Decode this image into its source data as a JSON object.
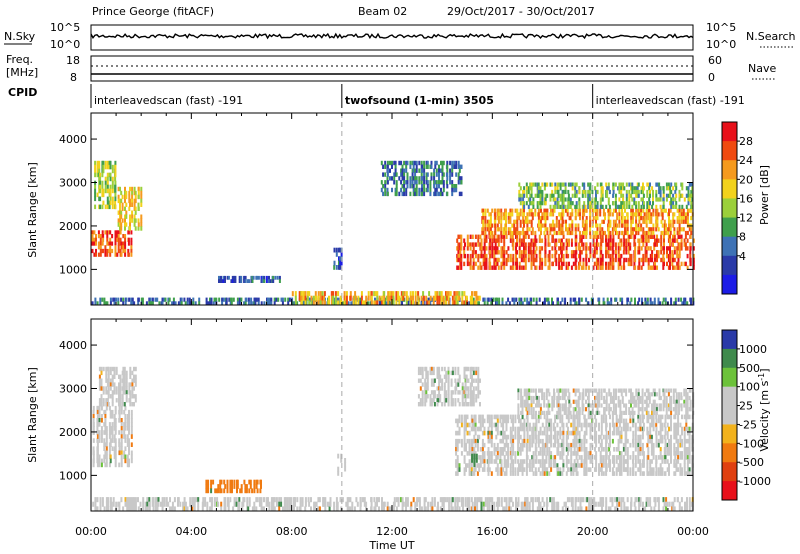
{
  "header": {
    "site": "Prince George (fitACF)",
    "beam": "Beam 02",
    "date_range": "29/Oct/2017 - 30/Oct/2017"
  },
  "noise_panel": {
    "left_label": "N.Sky",
    "right_label": "N.Search",
    "left_ticks": [
      "10^5",
      "10^0"
    ],
    "right_ticks": [
      "10^5",
      "10^0"
    ]
  },
  "freq_panel": {
    "left_label_1": "Freq.",
    "left_label_2": "[MHz]",
    "right_label": "Nave",
    "left_ticks": [
      "18",
      "8"
    ],
    "right_ticks": [
      "60",
      "0"
    ]
  },
  "cpid": {
    "label": "CPID",
    "segments": [
      {
        "text": "interleavedscan (fast) -191",
        "start": 0,
        "end": 10
      },
      {
        "text": "twofsound (1-min) 3505",
        "start": 10,
        "end": 20
      },
      {
        "text": "interleavedscan (fast) -191",
        "start": 20,
        "end": 24
      }
    ]
  },
  "power_colorbar": {
    "label": "Power [dB]",
    "ticks": [
      "28",
      "24",
      "20",
      "16",
      "12",
      "8",
      "4"
    ],
    "colors": [
      "#e8101a",
      "#f04a10",
      "#f59a1e",
      "#f2d21c",
      "#9bcf3a",
      "#3f9f4c",
      "#3e72b5",
      "#2a3aa8",
      "#1c1ce6"
    ]
  },
  "velocity_colorbar": {
    "label": "Velocity [m s",
    "label_sup": "-1",
    "label_end": "]",
    "ticks": [
      "1000",
      "500",
      "100",
      "25",
      "-25",
      "-100",
      "-500",
      "-1000"
    ],
    "colors": [
      "#2a3aa8",
      "#3f8a4c",
      "#6cc23a",
      "#c8c8c8",
      "#c8c8c8",
      "#f2b21c",
      "#f07a10",
      "#e04010",
      "#e8101a"
    ]
  },
  "chart_data": {
    "type": "heatmap",
    "xlabel": "Time UT",
    "x_ticks": [
      "00:00",
      "04:00",
      "08:00",
      "12:00",
      "16:00",
      "20:00",
      "00:00"
    ],
    "xlim": [
      0,
      24
    ],
    "ylabel": "Slant Range [km]",
    "y_ticks": [
      1000,
      2000,
      3000,
      4000
    ],
    "ylim": [
      180,
      4600
    ],
    "panels": [
      {
        "name": "Power",
        "bands": [
          {
            "t0": 0.0,
            "t1": 1.6,
            "r0": 1300,
            "r1": 1900,
            "value": 28
          },
          {
            "t0": 1.0,
            "t1": 2.0,
            "r0": 1900,
            "r1": 2900,
            "value": 20
          },
          {
            "t0": 0.1,
            "t1": 1.0,
            "r0": 2400,
            "r1": 3500,
            "value": 16
          },
          {
            "t0": 5.0,
            "t1": 7.5,
            "r0": 700,
            "r1": 850,
            "value": 6
          },
          {
            "t0": 9.6,
            "t1": 10.0,
            "r0": 1000,
            "r1": 1500,
            "value": 6
          },
          {
            "t0": 11.5,
            "t1": 14.8,
            "r0": 2700,
            "r1": 3500,
            "value": 8
          },
          {
            "t0": 14.5,
            "t1": 24.0,
            "r0": 1000,
            "r1": 1800,
            "value": 28
          },
          {
            "t0": 15.5,
            "t1": 24.0,
            "r0": 1800,
            "r1": 2400,
            "value": 24
          },
          {
            "t0": 17.0,
            "t1": 24.0,
            "r0": 2400,
            "r1": 3000,
            "value": 14
          },
          {
            "t0": 0.0,
            "t1": 24.0,
            "r0": 180,
            "r1": 350,
            "value": 8
          },
          {
            "t0": 8.0,
            "t1": 15.5,
            "r0": 180,
            "r1": 500,
            "value": 22
          }
        ]
      },
      {
        "name": "Velocity",
        "bands": [
          {
            "t0": 0.0,
            "t1": 1.6,
            "r0": 1200,
            "r1": 2600,
            "value": 0
          },
          {
            "t0": 0.3,
            "t1": 1.8,
            "r0": 2600,
            "r1": 3500,
            "value": -25
          },
          {
            "t0": 4.5,
            "t1": 6.8,
            "r0": 600,
            "r1": 900,
            "value": -100
          },
          {
            "t0": 9.8,
            "t1": 10.1,
            "r0": 1000,
            "r1": 1500,
            "value": 0
          },
          {
            "t0": 13.0,
            "t1": 15.5,
            "r0": 2600,
            "r1": 3500,
            "value": 0
          },
          {
            "t0": 14.5,
            "t1": 24.0,
            "r0": 1000,
            "r1": 2400,
            "value": 0
          },
          {
            "t0": 17.0,
            "t1": 24.0,
            "r0": 2400,
            "r1": 3000,
            "value": 0
          },
          {
            "t0": 15.1,
            "t1": 15.4,
            "r0": 1200,
            "r1": 1500,
            "value": 200
          },
          {
            "t0": 0.0,
            "t1": 24.0,
            "r0": 180,
            "r1": 500,
            "value": 25
          }
        ]
      }
    ],
    "dividers": [
      10,
      20
    ]
  }
}
